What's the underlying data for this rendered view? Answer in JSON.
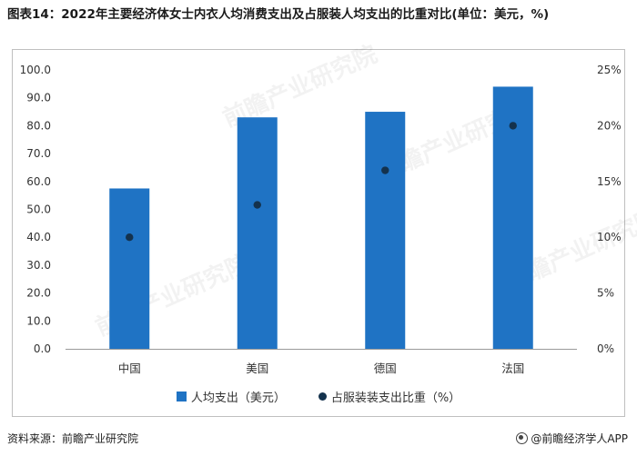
{
  "title": "图表14：2022年主要经济体女士内衣人均消费支出及占服装人均支出的比重对比(单位：美元，%)",
  "chart_data": {
    "type": "bar",
    "categories": [
      "中国",
      "美国",
      "德国",
      "法国"
    ],
    "series": [
      {
        "name": "人均支出（美元）",
        "kind": "bar",
        "axis": "left",
        "values": [
          57.5,
          83.0,
          85.0,
          94.0
        ]
      },
      {
        "name": "占服装支出比重（%）",
        "kind": "scatter",
        "axis": "right",
        "values": [
          10.0,
          12.9,
          16.0,
          20.0
        ]
      }
    ],
    "ylim_left": [
      0,
      100
    ],
    "yticks_left": [
      "0.0",
      "10.0",
      "20.0",
      "30.0",
      "40.0",
      "50.0",
      "60.0",
      "70.0",
      "80.0",
      "90.0",
      "100.0"
    ],
    "ylim_right": [
      0,
      25
    ],
    "yticks_right": [
      "0%",
      "5%",
      "10%",
      "15%",
      "20%",
      "25%"
    ],
    "grid": false,
    "legend_position": "bottom",
    "colors": {
      "bar": "#1f73c4",
      "dot": "#14324d"
    }
  },
  "legend": {
    "bar_label": "人均支出（美元）",
    "dot_label": "占服装装支出比重（%）"
  },
  "footer": {
    "source": "资料来源：前瞻产业研究院",
    "brand": "@前瞻经济学人APP"
  },
  "watermark": "前瞻产业研究院"
}
